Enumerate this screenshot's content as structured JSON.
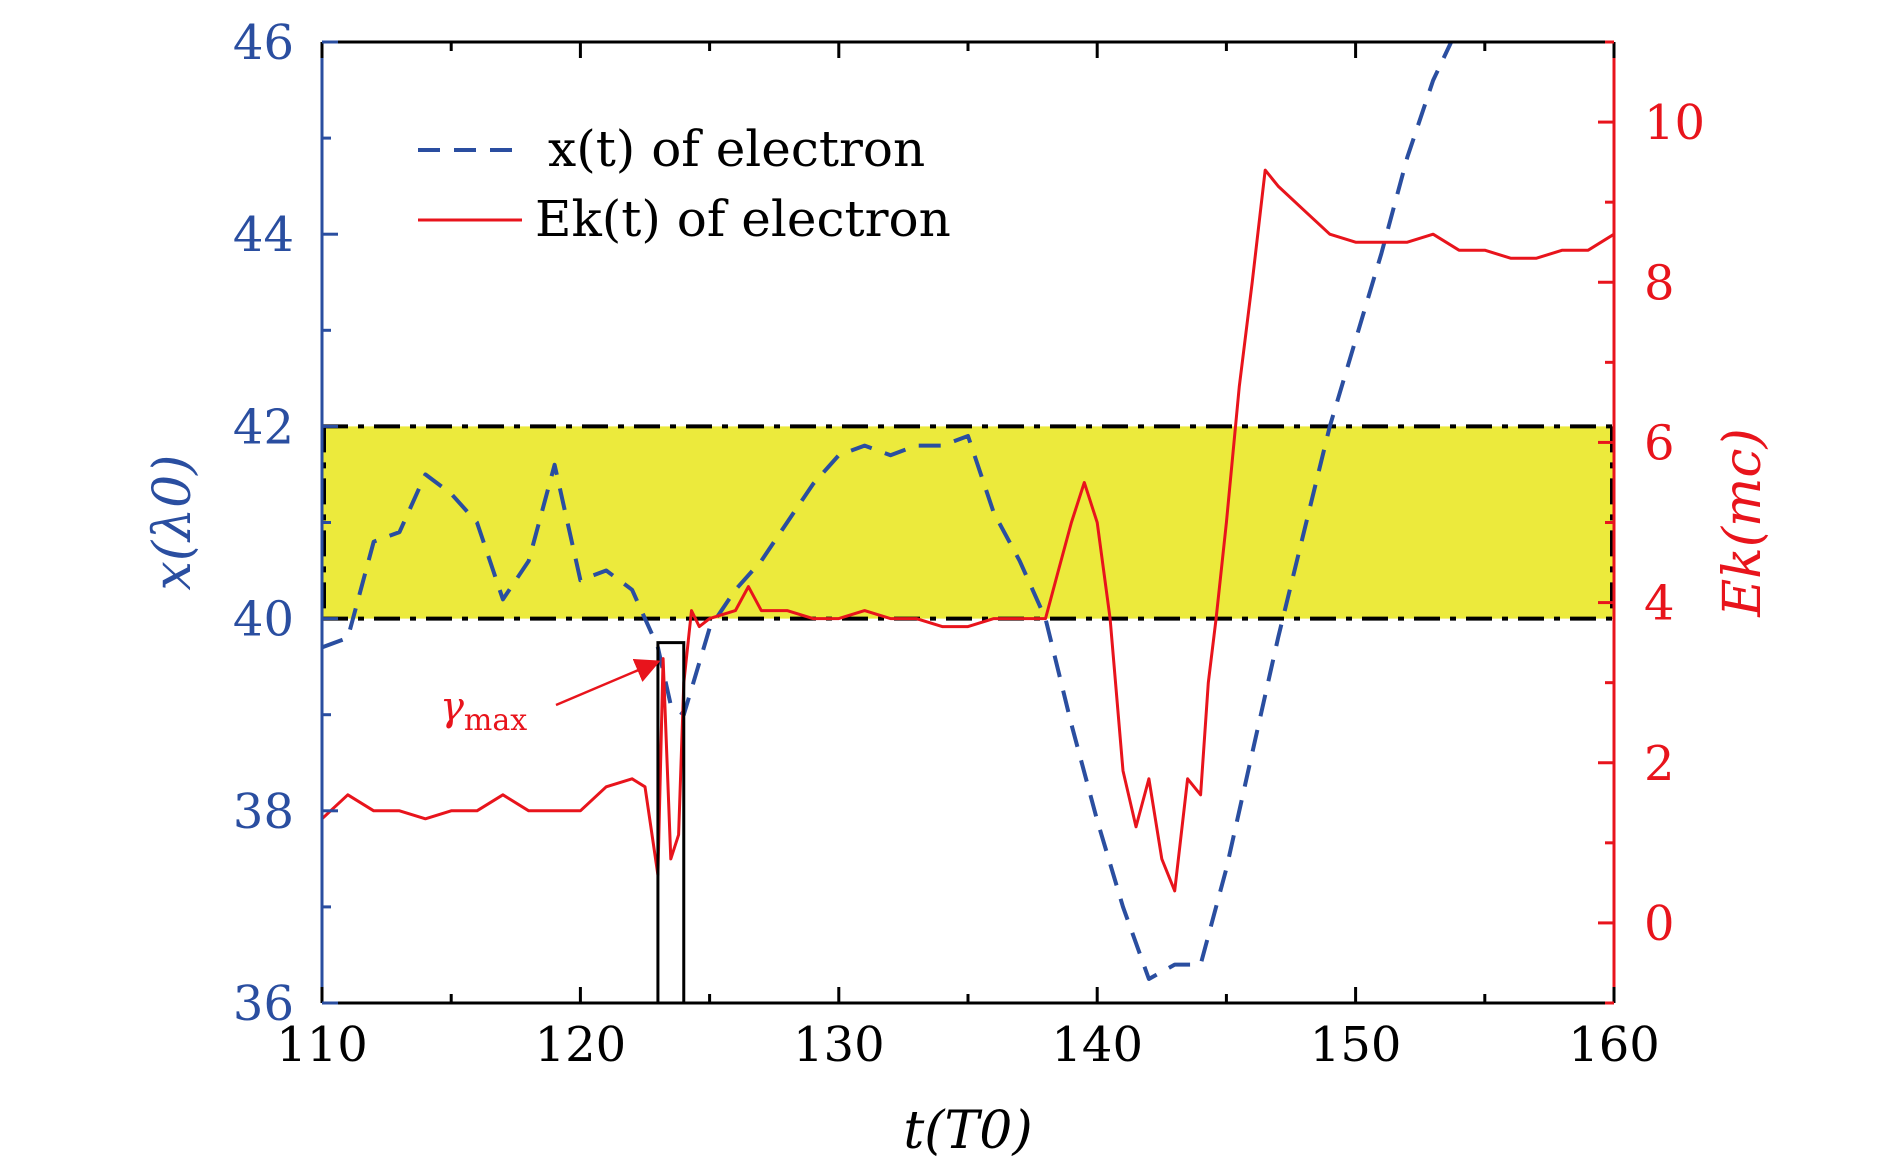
{
  "chart_data": {
    "type": "line",
    "title": "",
    "x_axis": {
      "label": "t(T0)",
      "min": 110,
      "max": 160,
      "ticks": [
        110,
        120,
        130,
        140,
        150,
        160
      ],
      "tick_labels": [
        "110",
        "120",
        "130",
        "140",
        "150",
        "160"
      ]
    },
    "y_left_axis": {
      "label": "x(λ0)",
      "min": 36,
      "max": 46,
      "ticks": [
        36,
        38,
        40,
        42,
        44,
        46
      ],
      "tick_labels": [
        "36",
        "38",
        "40",
        "42",
        "44",
        "46"
      ],
      "color": "#2a4ea0"
    },
    "y_right_axis": {
      "label": "Ek(mc)",
      "min": -1,
      "max": 11,
      "ticks": [
        0,
        2,
        4,
        6,
        8,
        10
      ],
      "tick_labels": [
        "0",
        "2",
        "4",
        "6",
        "8",
        "10"
      ],
      "color": "#e8141c"
    },
    "band": {
      "y_min": 40,
      "y_max": 42,
      "x_min": 110,
      "x_max": 160,
      "fill": "#ecea3c"
    },
    "series": [
      {
        "name": "x(t) of electron",
        "axis": "left",
        "style": "dashed",
        "color": "#2a4ea0",
        "x": [
          110,
          111,
          112,
          113,
          114,
          115,
          116,
          117,
          118,
          119,
          120,
          121,
          122,
          123,
          123.5,
          124,
          125,
          126,
          127,
          128,
          129,
          130,
          131,
          132,
          133,
          134,
          135,
          136,
          137,
          138,
          139,
          140,
          141,
          142,
          143,
          144,
          145,
          146,
          147,
          148,
          149,
          150,
          151,
          152,
          153,
          153.7
        ],
        "values": [
          39.7,
          39.8,
          40.8,
          40.9,
          41.5,
          41.3,
          41.0,
          40.2,
          40.6,
          41.6,
          40.4,
          40.5,
          40.3,
          39.7,
          39.1,
          39.0,
          39.9,
          40.3,
          40.6,
          41.0,
          41.4,
          41.7,
          41.8,
          41.7,
          41.8,
          41.8,
          41.9,
          41.1,
          40.6,
          40.0,
          38.9,
          37.9,
          37.0,
          36.25,
          36.4,
          36.4,
          37.4,
          38.6,
          39.8,
          40.9,
          42.0,
          42.9,
          43.8,
          44.8,
          45.6,
          46.0
        ]
      },
      {
        "name": "Ek(t) of electron",
        "axis": "right",
        "style": "solid",
        "color": "#e8141c",
        "x": [
          110,
          111,
          112,
          113,
          114,
          115,
          116,
          117,
          118,
          119,
          120,
          121,
          122,
          122.5,
          123,
          123.2,
          123.5,
          123.8,
          124,
          124.3,
          124.6,
          125,
          126,
          126.5,
          127,
          128,
          129,
          130,
          131,
          132,
          133,
          134,
          135,
          136,
          137,
          138,
          138.5,
          139,
          139.5,
          140,
          140.5,
          141,
          141.5,
          142,
          142.5,
          143,
          143.5,
          144,
          144.3,
          144.6,
          145,
          145.5,
          146,
          146.5,
          147,
          148,
          149,
          150,
          151,
          152,
          153,
          154,
          155,
          156,
          157,
          158,
          159,
          160
        ],
        "values": [
          1.3,
          1.6,
          1.4,
          1.4,
          1.3,
          1.4,
          1.4,
          1.6,
          1.4,
          1.4,
          1.4,
          1.7,
          1.8,
          1.7,
          0.6,
          3.3,
          0.8,
          1.1,
          3.0,
          3.9,
          3.7,
          3.8,
          3.9,
          4.2,
          3.9,
          3.9,
          3.8,
          3.8,
          3.9,
          3.8,
          3.8,
          3.7,
          3.7,
          3.8,
          3.8,
          3.8,
          4.4,
          5.0,
          5.5,
          5.0,
          3.8,
          1.9,
          1.2,
          1.8,
          0.8,
          0.4,
          1.8,
          1.6,
          3.0,
          3.8,
          5.0,
          6.7,
          8.0,
          9.4,
          9.2,
          8.9,
          8.6,
          8.5,
          8.5,
          8.5,
          8.6,
          8.4,
          8.4,
          8.3,
          8.3,
          8.4,
          8.4,
          8.6
        ]
      }
    ],
    "annotations": [
      {
        "text": "γmax",
        "text_main": "γ",
        "text_sub": "max",
        "color": "#e8141c",
        "box_x": [
          123,
          124
        ],
        "box_y_left": [
          36,
          39.75
        ]
      }
    ],
    "legend": {
      "position": "top-left",
      "entries": [
        "x(t) of electron",
        "Ek(t) of electron"
      ]
    }
  }
}
